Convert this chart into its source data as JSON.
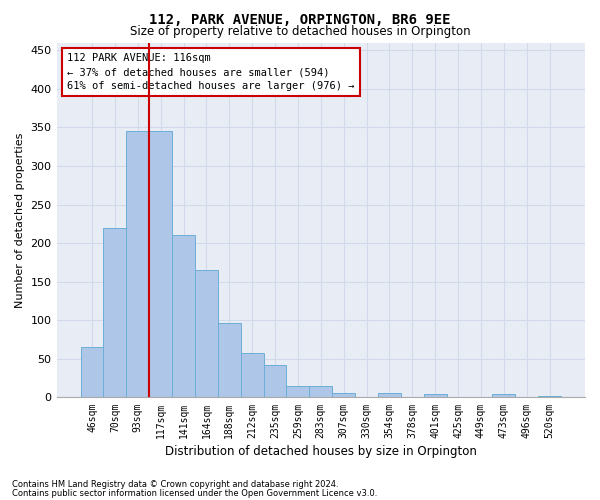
{
  "title": "112, PARK AVENUE, ORPINGTON, BR6 9EE",
  "subtitle": "Size of property relative to detached houses in Orpington",
  "xlabel": "Distribution of detached houses by size in Orpington",
  "ylabel": "Number of detached properties",
  "categories": [
    "46sqm",
    "70sqm",
    "93sqm",
    "117sqm",
    "141sqm",
    "164sqm",
    "188sqm",
    "212sqm",
    "235sqm",
    "259sqm",
    "283sqm",
    "307sqm",
    "330sqm",
    "354sqm",
    "378sqm",
    "401sqm",
    "425sqm",
    "449sqm",
    "473sqm",
    "496sqm",
    "520sqm"
  ],
  "values": [
    65,
    220,
    345,
    345,
    210,
    165,
    97,
    57,
    42,
    15,
    15,
    6,
    0,
    6,
    0,
    4,
    0,
    0,
    4,
    0,
    2
  ],
  "bar_color": "#aec6e8",
  "bar_edge_color": "#6baed6",
  "grid_color": "#d0daea",
  "background_color": "#e8edf5",
  "annotation_box_color": "#cc0000",
  "property_line_x": 2.5,
  "annotation_title": "112 PARK AVENUE: 116sqm",
  "annotation_line1": "← 37% of detached houses are smaller (594)",
  "annotation_line2": "61% of semi-detached houses are larger (976) →",
  "property_line_color": "#cc0000",
  "ylim": [
    0,
    460
  ],
  "yticks": [
    0,
    50,
    100,
    150,
    200,
    250,
    300,
    350,
    400,
    450
  ],
  "footnote1": "Contains HM Land Registry data © Crown copyright and database right 2024.",
  "footnote2": "Contains public sector information licensed under the Open Government Licence v3.0."
}
